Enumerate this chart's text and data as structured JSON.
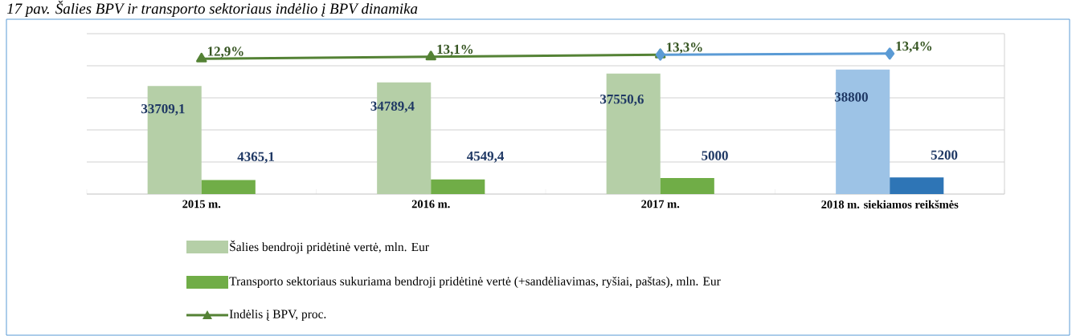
{
  "chart_data": {
    "type": "bar",
    "title": "17 pav. Šalies BPV ir transporto sektoriaus indėlio į BPV dinamika",
    "categories": [
      "2015 m.",
      "2016 m.",
      "2017 m.",
      "2018 m. siekiamos reikšmės"
    ],
    "series": [
      {
        "name": "Šalies bendroji pridėtinė vertė, mln. Eur",
        "color": "#b5cfa7",
        "colors": [
          "#b5cfa7",
          "#b5cfa7",
          "#b5cfa7",
          "#9dc3e6"
        ],
        "values": [
          33709.1,
          34789.4,
          37550.6,
          38800
        ],
        "value_labels": [
          "33709,1",
          "34789,4",
          "37550,6",
          "38800"
        ]
      },
      {
        "name": "Transporto sektoriaus sukuriama bendroji pridėtinė vertė (+sandėliavimas, ryšiai, paštas), mln. Eur",
        "color": "#70ad47",
        "colors": [
          "#70ad47",
          "#70ad47",
          "#70ad47",
          "#2e75b6"
        ],
        "values": [
          4365.1,
          4549.4,
          5000,
          5200
        ],
        "value_labels": [
          "4365,1",
          "4549,4",
          "5000",
          "5200"
        ]
      },
      {
        "name": "Indėlis  į BPV, proc.",
        "type": "line",
        "axis": "y2",
        "marker": "triangle",
        "color": "#548235",
        "values": [
          12.9,
          13.1,
          13.3,
          null
        ],
        "value_labels": [
          "12,9%",
          "13,1%",
          "13,3%",
          null
        ]
      },
      {
        "type": "line",
        "axis": "y2",
        "marker": "diamond",
        "color": "#5b9bd5",
        "values": [
          null,
          null,
          13.3,
          13.4
        ],
        "value_labels": [
          null,
          null,
          null,
          "13,4%"
        ]
      }
    ],
    "ylim": [
      0,
      50000
    ],
    "y2lim": [
      0,
      15.3
    ],
    "data_labels": true,
    "grid": "y",
    "legend": "bottom",
    "tick_labels": "x"
  }
}
